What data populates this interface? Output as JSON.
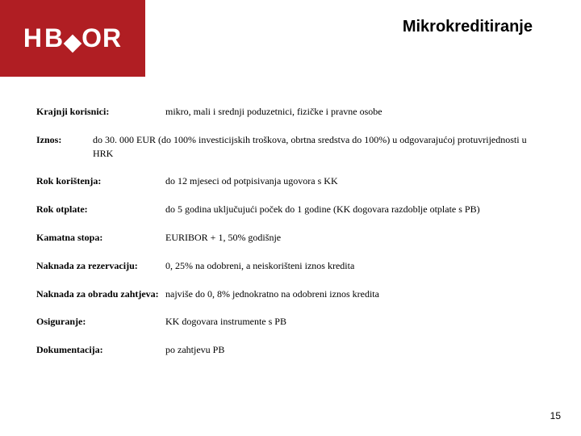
{
  "logo": {
    "text_h": "H",
    "text_b": "B",
    "text_or": "OR"
  },
  "title": "Mikrokreditiranje",
  "rows": {
    "krajnji_korisnici": {
      "label": "Krajnji korisnici:",
      "value": "mikro, mali i srednji poduzetnici, fizičke i pravne osobe"
    },
    "iznos": {
      "label": "Iznos:",
      "value": "do 30. 000 EUR (do 100% investicijskih troškova, obrtna sredstva do 100%) u odgovarajućoj protuvrijednosti u HRK"
    },
    "rok_koristenja": {
      "label": "Rok korištenja:",
      "value": "do 12 mjeseci od potpisivanja ugovora s KK"
    },
    "rok_otplate": {
      "label": "Rok otplate:",
      "value": "do 5 godina uključujući poček do 1 godine (KK dogovara razdoblje otplate s PB)"
    },
    "kamatna_stopa": {
      "label": "Kamatna stopa:",
      "value": "EURIBOR + 1, 50% godišnje"
    },
    "naknada_rezervacija": {
      "label": "Naknada za rezervaciju:",
      "value": "0, 25% na odobreni, a neiskorišteni iznos kredita"
    },
    "naknada_obrada": {
      "label": "Naknada za obradu zahtjeva:",
      "value": "najviše do 0, 8% jednokratno na odobreni iznos kredita"
    },
    "osiguranje": {
      "label": "Osiguranje:",
      "value": "KK dogovara instrumente s PB"
    },
    "dokumentacija": {
      "label": "Dokumentacija:",
      "value": "po zahtjevu PB"
    }
  },
  "page_number": "15",
  "colors": {
    "brand_red": "#b01e23",
    "white": "#ffffff",
    "black": "#000000"
  }
}
